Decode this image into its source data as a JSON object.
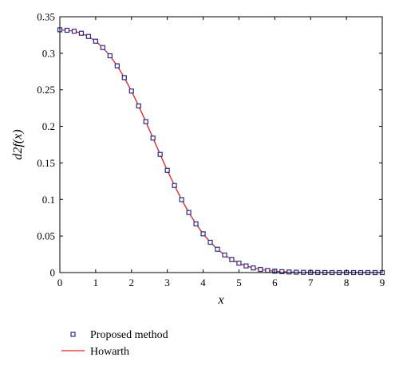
{
  "chart_data": {
    "type": "line",
    "title": "",
    "xlabel": "x",
    "ylabel": "d2f(x)",
    "xlim": [
      0,
      9
    ],
    "ylim": [
      0,
      0.35
    ],
    "xticks": [
      0,
      1,
      2,
      3,
      4,
      5,
      6,
      7,
      8,
      9
    ],
    "yticks": [
      0,
      0.05,
      0.1,
      0.15,
      0.2,
      0.25,
      0.3,
      0.35
    ],
    "xtick_labels": [
      "0",
      "1",
      "2",
      "3",
      "4",
      "5",
      "6",
      "7",
      "8",
      "9"
    ],
    "ytick_labels": [
      "0",
      "0.05",
      "0.1",
      "0.15",
      "0.2",
      "0.25",
      "0.3",
      "0.35"
    ],
    "grid": false,
    "legend_position": "bottom-left",
    "x": [
      0,
      0.2,
      0.4,
      0.6,
      0.8,
      1.0,
      1.2,
      1.4,
      1.6,
      1.8,
      2.0,
      2.2,
      2.4,
      2.6,
      2.8,
      3.0,
      3.2,
      3.4,
      3.6,
      3.8,
      4.0,
      4.2,
      4.4,
      4.6,
      4.8,
      5.0,
      5.2,
      5.4,
      5.6,
      5.8,
      6.0,
      6.2,
      6.4,
      6.6,
      6.8,
      7.0,
      7.2,
      7.4,
      7.6,
      7.8,
      8.0,
      8.2,
      8.4,
      8.6,
      8.8,
      9.0
    ],
    "series": [
      {
        "name": "Proposed method",
        "style": "markers",
        "color": "#2a2a8a",
        "values": [
          0.3321,
          0.3315,
          0.3301,
          0.3274,
          0.323,
          0.3165,
          0.3078,
          0.2966,
          0.2829,
          0.2667,
          0.2483,
          0.228,
          0.2064,
          0.184,
          0.1617,
          0.1398,
          0.1191,
          0.0998,
          0.0822,
          0.0666,
          0.053,
          0.0415,
          0.0319,
          0.024,
          0.0177,
          0.0128,
          0.0091,
          0.0063,
          0.0043,
          0.0029,
          0.0019,
          0.0012,
          0.0008,
          0.0005,
          0.0003,
          0.0002,
          0.0001,
          0.0001,
          0.0,
          0.0,
          0.0,
          0.0,
          0.0,
          0.0,
          0.0,
          0.0
        ]
      },
      {
        "name": "Howarth",
        "style": "line",
        "color": "#e02020",
        "values": [
          0.3321,
          0.3315,
          0.3301,
          0.3274,
          0.323,
          0.3165,
          0.3078,
          0.2966,
          0.2829,
          0.2667,
          0.2483,
          0.228,
          0.2064,
          0.184,
          0.1617,
          0.1398,
          0.1191,
          0.0998,
          0.0822,
          0.0666,
          0.053,
          0.0415,
          0.0319,
          0.024,
          0.0177,
          0.0128,
          0.0091,
          0.0063,
          0.0043,
          0.0029,
          0.0019,
          0.0012,
          0.0008,
          0.0005,
          0.0003,
          0.0002,
          0.0001,
          0.0001,
          0.0,
          0.0,
          0.0,
          0.0,
          0.0,
          0.0,
          0.0,
          0.0
        ]
      }
    ]
  }
}
